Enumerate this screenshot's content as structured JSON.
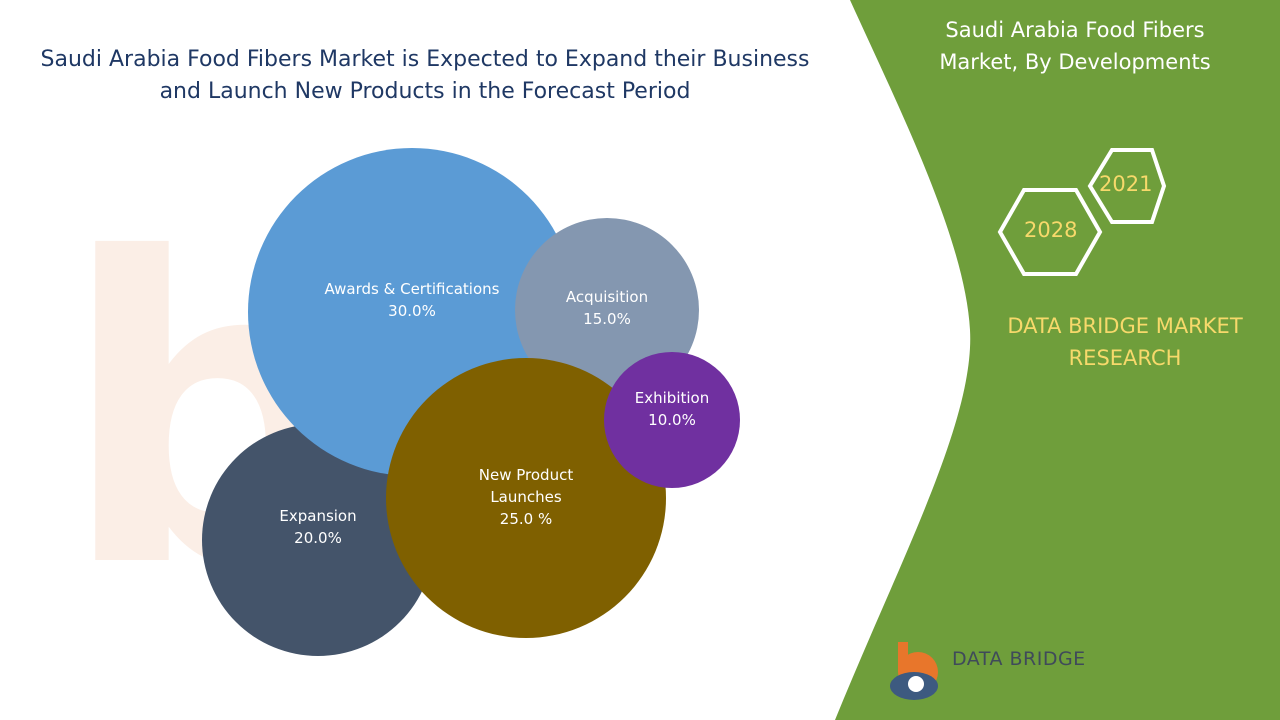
{
  "chart_data": {
    "type": "bubble",
    "title": "Saudi Arabia Food Fibers Market is Expected to Expand their Business and Launch New Products in the Forecast Period",
    "categories": [
      "Awards & Certifications",
      "Acquisition",
      "Exhibition",
      "New Product Launches",
      "Expansion"
    ],
    "values": [
      30,
      15,
      10,
      25,
      20
    ],
    "value_labels": [
      "30.0%",
      "15.0%",
      "10.0%",
      "25.0 %",
      "20.0%"
    ],
    "colors": [
      "#5b9bd5",
      "#8497b0",
      "#7030a0",
      "#7f6000",
      "#44546a"
    ]
  },
  "panel": {
    "title": "Saudi Arabia Food Fibers Market, By Developments",
    "years": [
      "2021",
      "2028"
    ],
    "brand": "DATA BRIDGE MARKET RESEARCH",
    "logo": "DATA BRIDGE"
  }
}
